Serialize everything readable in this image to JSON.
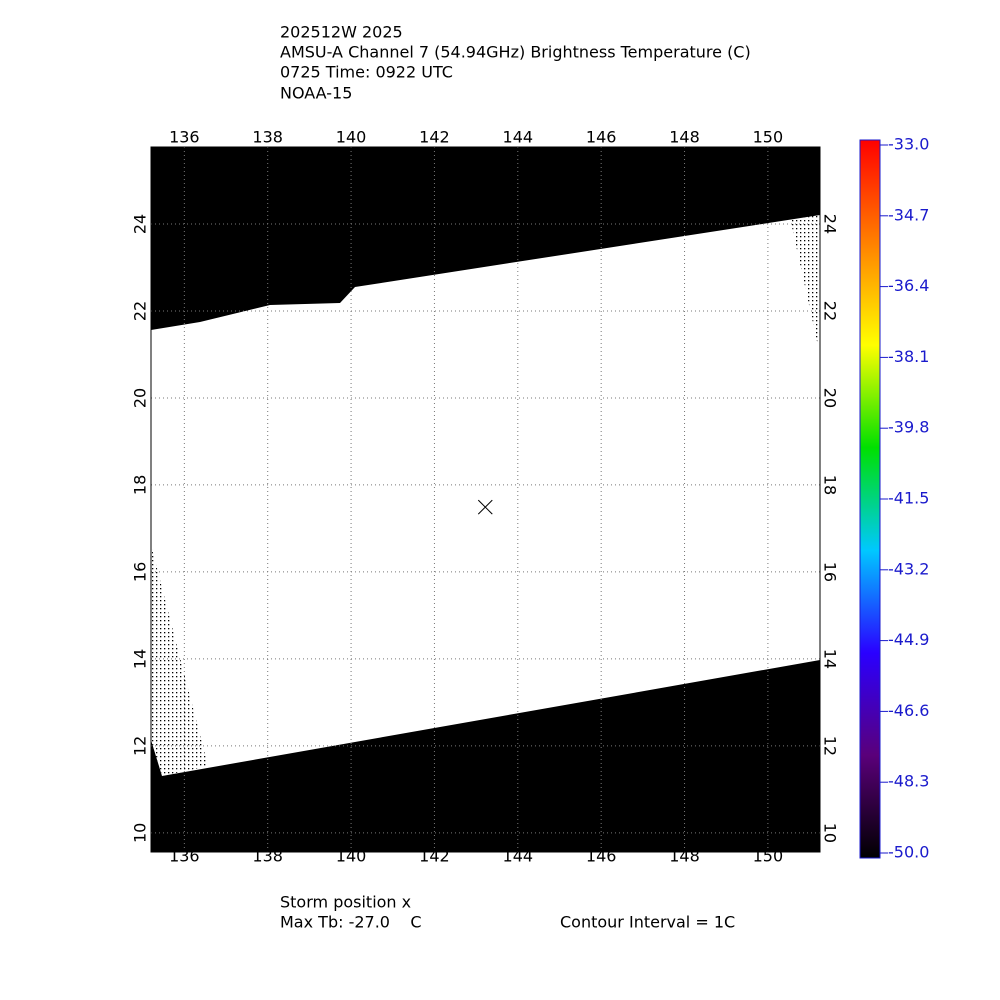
{
  "chart_data": {
    "type": "map",
    "title_lines": [
      "202512W 2025",
      "AMSU-A Channel 7 (54.94GHz) Brightness Temperature (C)",
      "0725 Time: 0922 UTC",
      "NOAA-15"
    ],
    "xlim": [
      135.2,
      151.25
    ],
    "ylim": [
      9.56,
      25.77
    ],
    "xticks": [
      136,
      138,
      140,
      142,
      144,
      146,
      148,
      150
    ],
    "yticks": [
      10,
      12,
      14,
      16,
      18,
      20,
      22,
      24
    ],
    "grid": true,
    "storm": {
      "lon": 143.22,
      "lat": 17.49
    },
    "colorbar": {
      "clim": [
        -50,
        -33
      ],
      "colors": [
        "#000000",
        "#5a007a",
        "#2a00ff",
        "#00c8ff",
        "#00e000",
        "#ffff00",
        "#ff8000",
        "#ff0000"
      ],
      "ticks": [
        {
          "value": -33,
          "label": "-33.0"
        },
        {
          "value": -34.7,
          "label": "-34.7"
        },
        {
          "value": -36.4,
          "label": "-36.4"
        },
        {
          "value": -38.1,
          "label": "-38.1"
        },
        {
          "value": -39.8,
          "label": "-39.8"
        },
        {
          "value": -41.5,
          "label": "-41.5"
        },
        {
          "value": -43.2,
          "label": "-43.2"
        },
        {
          "value": -44.9,
          "label": "-44.9"
        },
        {
          "value": -46.6,
          "label": "-46.6"
        },
        {
          "value": -48.3,
          "label": "-48.3"
        },
        {
          "value": -50,
          "label": "-50.0"
        }
      ]
    },
    "footer": {
      "storm_label": "Storm position x",
      "max_tb": "Max Tb: -27.0    C",
      "contour": "Contour Interval = 1C"
    }
  }
}
